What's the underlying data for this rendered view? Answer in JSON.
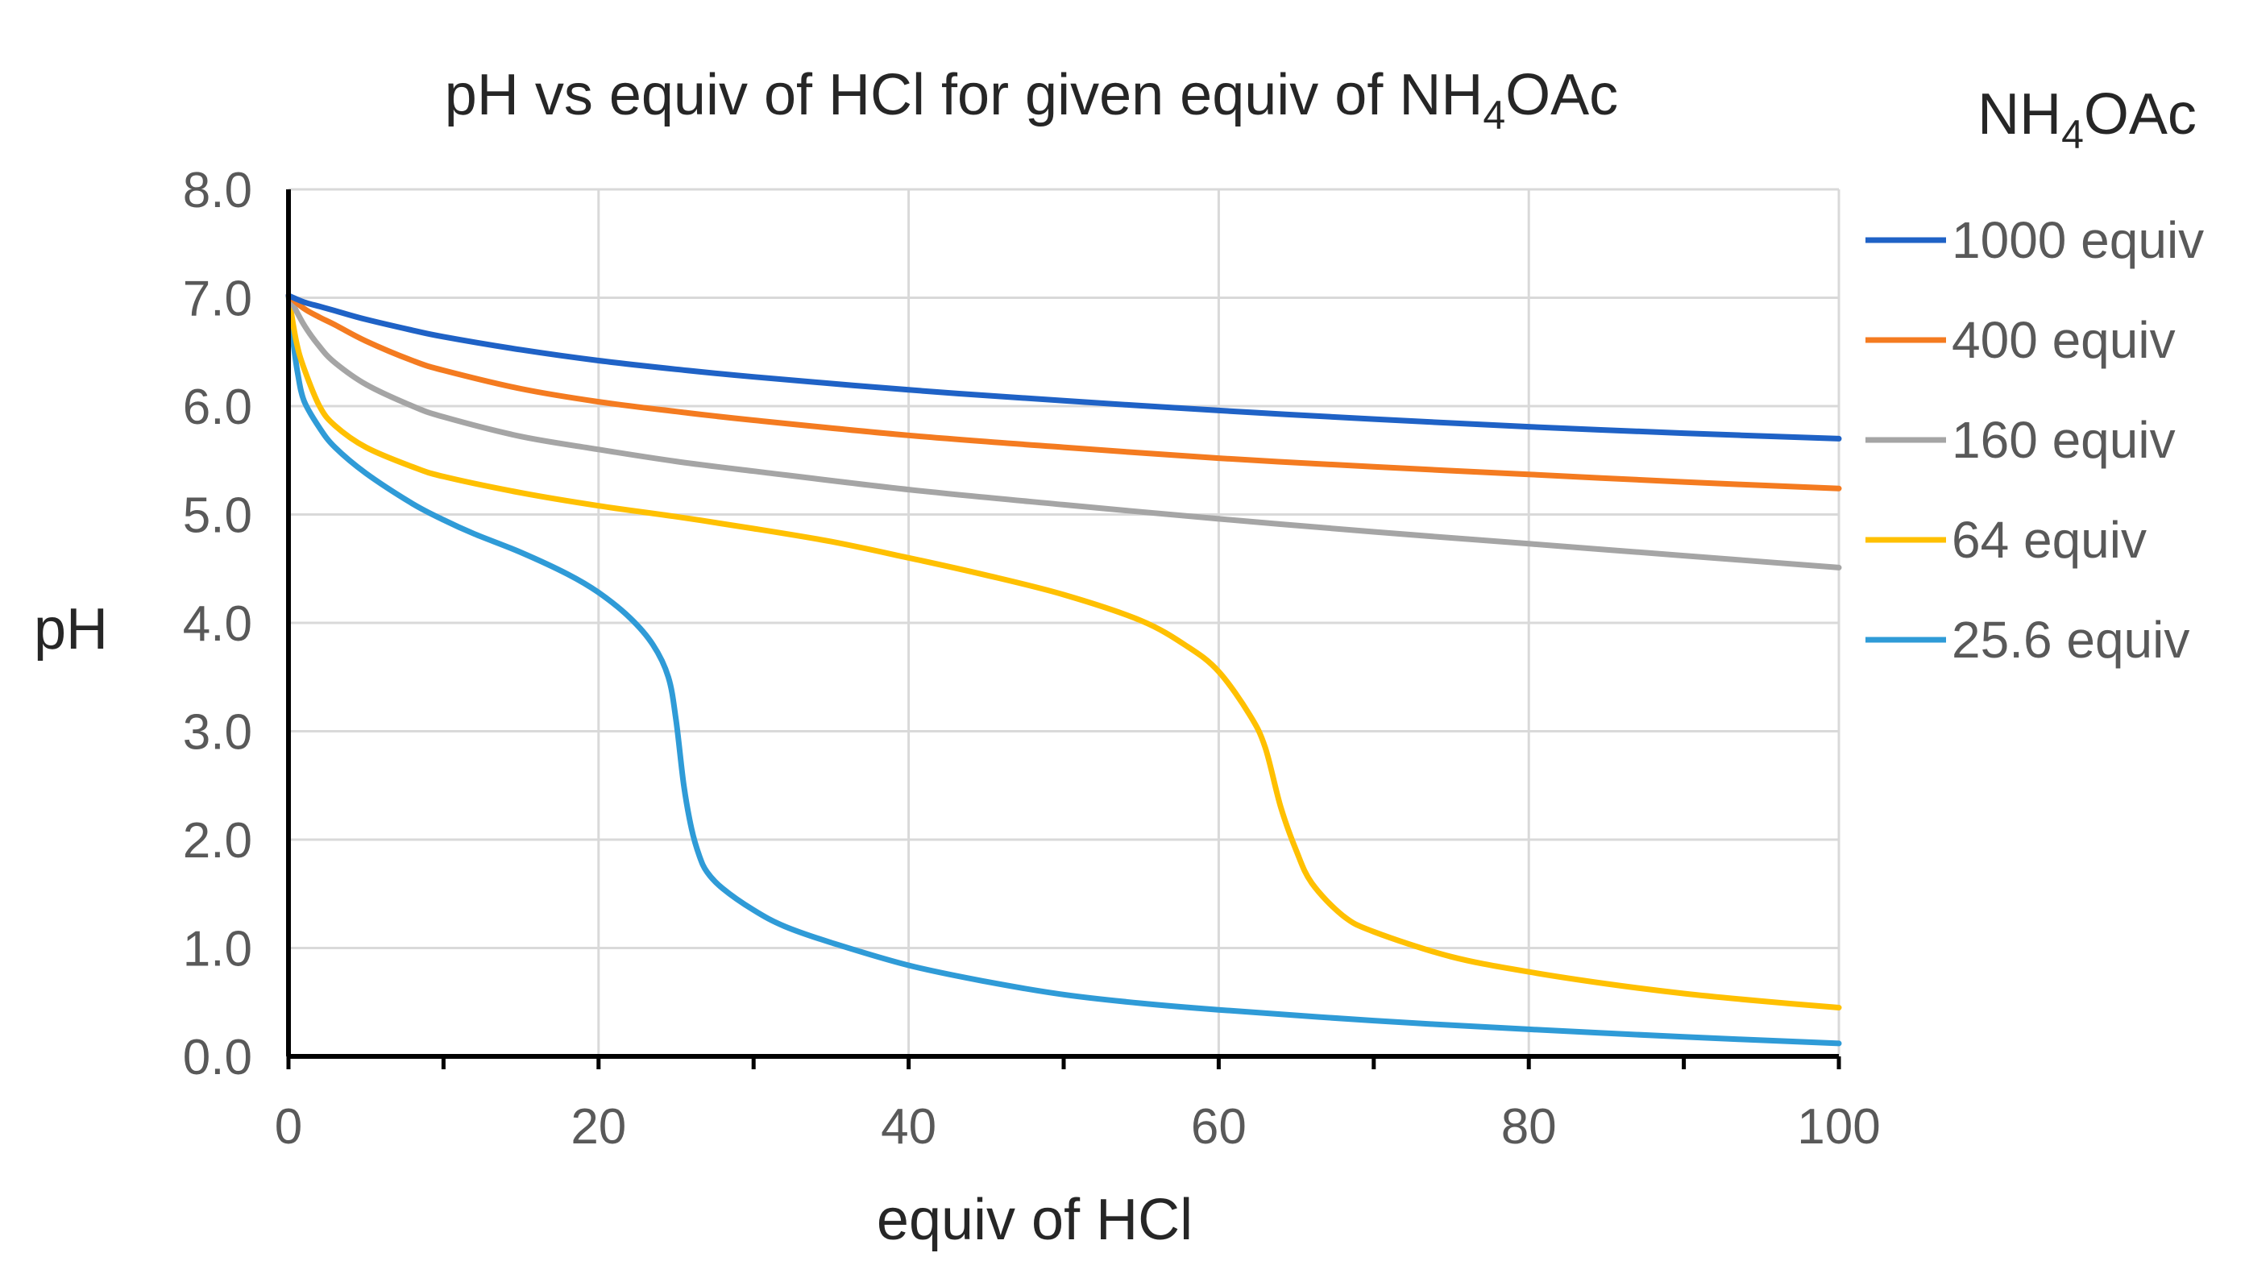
{
  "chart_data": {
    "type": "line",
    "title": {
      "main": "pH vs equiv of HCl for given equiv of NH",
      "sub": "4",
      "tail": "OAc"
    },
    "xlabel": "equiv of HCl",
    "ylabel": "pH",
    "xlim": [
      0,
      100
    ],
    "ylim": [
      0,
      8
    ],
    "x_ticks": [
      "0",
      "20",
      "40",
      "60",
      "80",
      "100"
    ],
    "x_tick_values": [
      0,
      20,
      40,
      60,
      80,
      100
    ],
    "x_minor_tick_values": [
      10,
      30,
      50,
      70,
      90
    ],
    "y_ticks": [
      "0.0",
      "1.0",
      "2.0",
      "3.0",
      "4.0",
      "5.0",
      "6.0",
      "7.0",
      "8.0"
    ],
    "y_tick_values": [
      0,
      1,
      2,
      3,
      4,
      5,
      6,
      7,
      8
    ],
    "grid": true,
    "legend": {
      "position": "right",
      "title": {
        "main": "NH",
        "sub": "4",
        "tail": "OAc"
      }
    },
    "series": [
      {
        "name": "1000 equiv",
        "color": "#1f62c6",
        "points": [
          [
            0,
            7.02
          ],
          [
            1,
            6.96
          ],
          [
            2,
            6.92
          ],
          [
            3,
            6.88
          ],
          [
            5,
            6.8
          ],
          [
            8,
            6.7
          ],
          [
            10,
            6.64
          ],
          [
            15,
            6.52
          ],
          [
            20,
            6.42
          ],
          [
            25,
            6.34
          ],
          [
            30,
            6.27
          ],
          [
            40,
            6.15
          ],
          [
            50,
            6.05
          ],
          [
            60,
            5.96
          ],
          [
            70,
            5.88
          ],
          [
            80,
            5.81
          ],
          [
            90,
            5.75
          ],
          [
            100,
            5.7
          ]
        ]
      },
      {
        "name": "400 equiv",
        "color": "#f47b20",
        "points": [
          [
            0,
            7.02
          ],
          [
            1,
            6.9
          ],
          [
            2,
            6.82
          ],
          [
            3,
            6.75
          ],
          [
            5,
            6.6
          ],
          [
            8,
            6.42
          ],
          [
            10,
            6.33
          ],
          [
            15,
            6.16
          ],
          [
            20,
            6.04
          ],
          [
            25,
            5.95
          ],
          [
            30,
            5.87
          ],
          [
            40,
            5.73
          ],
          [
            50,
            5.62
          ],
          [
            60,
            5.52
          ],
          [
            70,
            5.44
          ],
          [
            80,
            5.37
          ],
          [
            90,
            5.3
          ],
          [
            100,
            5.24
          ]
        ]
      },
      {
        "name": "160 equiv",
        "color": "#a5a5a5",
        "points": [
          [
            0,
            7.02
          ],
          [
            1,
            6.75
          ],
          [
            2,
            6.55
          ],
          [
            3,
            6.4
          ],
          [
            5,
            6.2
          ],
          [
            8,
            6.0
          ],
          [
            10,
            5.9
          ],
          [
            15,
            5.72
          ],
          [
            20,
            5.6
          ],
          [
            25,
            5.49
          ],
          [
            30,
            5.4
          ],
          [
            40,
            5.23
          ],
          [
            50,
            5.09
          ],
          [
            60,
            4.96
          ],
          [
            70,
            4.84
          ],
          [
            80,
            4.73
          ],
          [
            90,
            4.62
          ],
          [
            100,
            4.51
          ]
        ]
      },
      {
        "name": "64 equiv",
        "color": "#ffc000",
        "points": [
          [
            0,
            7.02
          ],
          [
            0.5,
            6.6
          ],
          [
            1,
            6.35
          ],
          [
            2,
            6.0
          ],
          [
            3,
            5.82
          ],
          [
            5,
            5.62
          ],
          [
            8,
            5.44
          ],
          [
            10,
            5.35
          ],
          [
            15,
            5.2
          ],
          [
            20,
            5.08
          ],
          [
            25,
            4.98
          ],
          [
            30,
            4.87
          ],
          [
            35,
            4.75
          ],
          [
            40,
            4.6
          ],
          [
            45,
            4.44
          ],
          [
            50,
            4.26
          ],
          [
            55,
            4.02
          ],
          [
            58,
            3.78
          ],
          [
            60,
            3.55
          ],
          [
            62,
            3.15
          ],
          [
            63,
            2.85
          ],
          [
            64,
            2.3
          ],
          [
            65,
            1.9
          ],
          [
            66,
            1.6
          ],
          [
            68,
            1.3
          ],
          [
            70,
            1.15
          ],
          [
            75,
            0.92
          ],
          [
            80,
            0.78
          ],
          [
            85,
            0.67
          ],
          [
            90,
            0.58
          ],
          [
            95,
            0.51
          ],
          [
            100,
            0.45
          ]
        ]
      },
      {
        "name": "25.6 equiv",
        "color": "#2f9bd7",
        "points": [
          [
            0,
            7.02
          ],
          [
            0.3,
            6.6
          ],
          [
            0.6,
            6.3
          ],
          [
            1,
            6.05
          ],
          [
            2,
            5.8
          ],
          [
            3,
            5.62
          ],
          [
            5,
            5.38
          ],
          [
            8,
            5.1
          ],
          [
            10,
            4.95
          ],
          [
            12,
            4.82
          ],
          [
            15,
            4.65
          ],
          [
            18,
            4.45
          ],
          [
            20,
            4.28
          ],
          [
            22,
            4.05
          ],
          [
            23.5,
            3.8
          ],
          [
            24.5,
            3.5
          ],
          [
            25,
            3.1
          ],
          [
            25.5,
            2.5
          ],
          [
            26,
            2.1
          ],
          [
            26.5,
            1.85
          ],
          [
            27,
            1.7
          ],
          [
            28,
            1.55
          ],
          [
            30,
            1.35
          ],
          [
            32,
            1.2
          ],
          [
            35,
            1.05
          ],
          [
            40,
            0.84
          ],
          [
            45,
            0.69
          ],
          [
            50,
            0.57
          ],
          [
            55,
            0.49
          ],
          [
            60,
            0.43
          ],
          [
            70,
            0.33
          ],
          [
            80,
            0.25
          ],
          [
            90,
            0.18
          ],
          [
            100,
            0.12
          ]
        ]
      }
    ]
  }
}
